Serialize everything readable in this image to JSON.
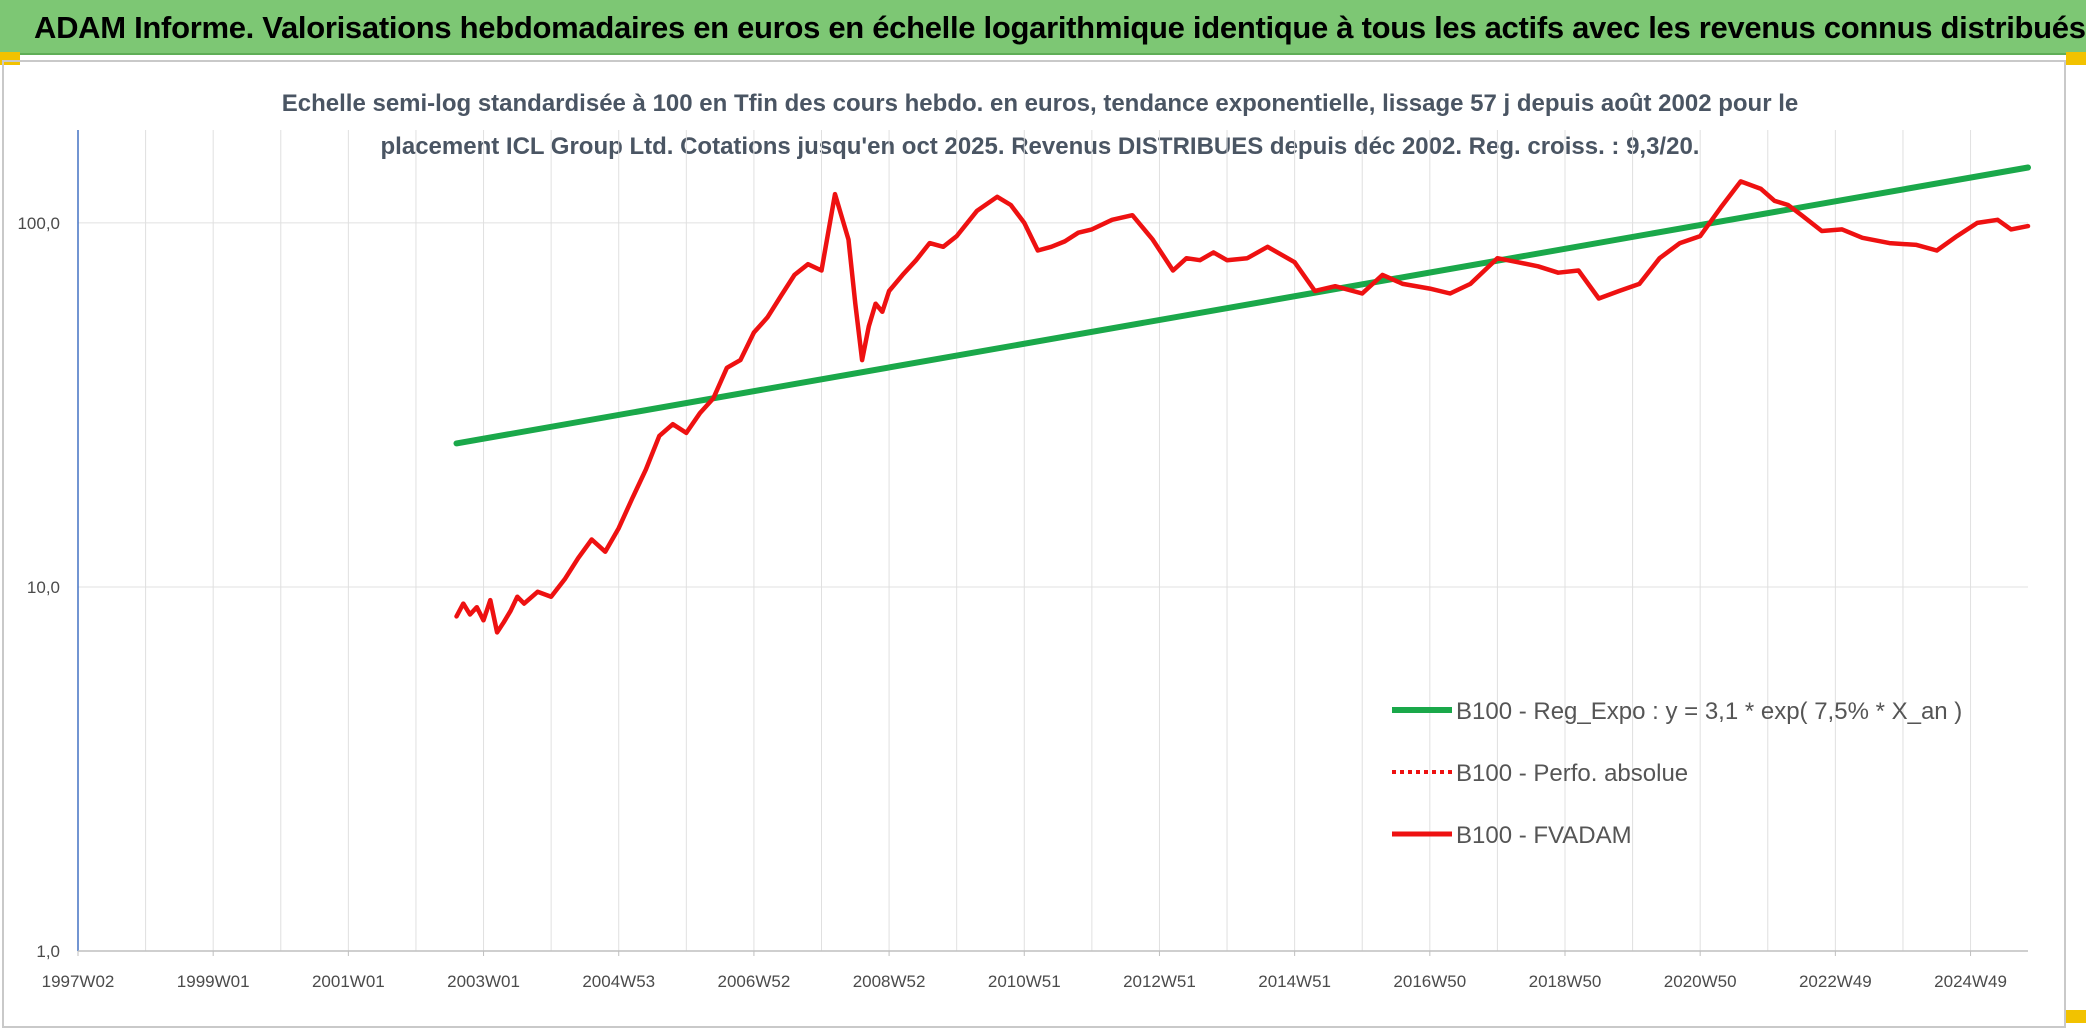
{
  "header": {
    "title": "ADAM Informe. Valorisations hebdomadaires en euros en échelle logarithmique identique à tous les actifs avec les revenus connus distribués"
  },
  "colors": {
    "header_bg": "#7dc774",
    "regression": "#1aa84a",
    "series": "#ee1111",
    "grid": "#e0e0e0",
    "axis": "#4472c4"
  },
  "chart_data": {
    "type": "line",
    "title_line1": "Echelle semi-log standardisée à 100 en Tfin des cours hebdo. en euros, tendance exponentielle, lissage 57 j depuis août 2002 pour le",
    "title_line2": "placement ICL Group Ltd. Cotations jusqu'en oct 2025. Revenus DISTRIBUES depuis déc 2002. Reg. croiss. : 9,3/20.",
    "y_scale": "log",
    "ylim": [
      1,
      180
    ],
    "xlim": [
      1997.0,
      2025.85
    ],
    "y_ticks": [
      {
        "value": 100,
        "label": "100,0"
      },
      {
        "value": 10,
        "label": "10,0"
      },
      {
        "value": 1,
        "label": "1,0"
      }
    ],
    "x_ticks": [
      {
        "value": 1997.0,
        "label": "1997W02"
      },
      {
        "value": 1999.0,
        "label": "1999W01"
      },
      {
        "value": 2001.0,
        "label": "2001W01"
      },
      {
        "value": 2003.0,
        "label": "2003W01"
      },
      {
        "value": 2005.0,
        "label": "2004W53"
      },
      {
        "value": 2007.0,
        "label": "2006W52"
      },
      {
        "value": 2009.0,
        "label": "2008W52"
      },
      {
        "value": 2011.0,
        "label": "2010W51"
      },
      {
        "value": 2013.0,
        "label": "2012W51"
      },
      {
        "value": 2015.0,
        "label": "2014W51"
      },
      {
        "value": 2017.0,
        "label": "2016W50"
      },
      {
        "value": 2019.0,
        "label": "2018W50"
      },
      {
        "value": 2021.0,
        "label": "2020W50"
      },
      {
        "value": 2023.0,
        "label": "2022W49"
      },
      {
        "value": 2025.0,
        "label": "2024W49"
      }
    ],
    "legend": [
      {
        "label": "B100 - Reg_Expo : y = 3,1 * exp( 7,5% *  X_an )",
        "style": "solid-green"
      },
      {
        "label": "B100 - Perfo. absolue",
        "style": "dotted-red"
      },
      {
        "label": "B100 - FVADAM",
        "style": "solid-red"
      }
    ],
    "series": [
      {
        "name": "B100 - Reg_Expo",
        "x": [
          2002.6,
          2025.85
        ],
        "y": [
          24.8,
          142
        ]
      },
      {
        "name": "B100 - FVADAM",
        "x": [
          2002.6,
          2002.7,
          2002.8,
          2002.9,
          2003.0,
          2003.1,
          2003.2,
          2003.3,
          2003.4,
          2003.5,
          2003.6,
          2003.8,
          2004.0,
          2004.2,
          2004.4,
          2004.6,
          2004.8,
          2005.0,
          2005.2,
          2005.4,
          2005.6,
          2005.8,
          2006.0,
          2006.2,
          2006.4,
          2006.6,
          2006.8,
          2007.0,
          2007.2,
          2007.4,
          2007.6,
          2007.8,
          2008.0,
          2008.2,
          2008.4,
          2008.5,
          2008.6,
          2008.7,
          2008.8,
          2008.9,
          2009.0,
          2009.2,
          2009.4,
          2009.6,
          2009.8,
          2010.0,
          2010.3,
          2010.6,
          2010.8,
          2011.0,
          2011.2,
          2011.4,
          2011.6,
          2011.8,
          2012.0,
          2012.3,
          2012.6,
          2012.9,
          2013.2,
          2013.4,
          2013.6,
          2013.8,
          2014.0,
          2014.3,
          2014.6,
          2015.0,
          2015.3,
          2015.6,
          2016.0,
          2016.3,
          2016.6,
          2017.0,
          2017.3,
          2017.6,
          2018.0,
          2018.3,
          2018.6,
          2018.9,
          2019.2,
          2019.5,
          2019.8,
          2020.1,
          2020.4,
          2020.7,
          2021.0,
          2021.3,
          2021.6,
          2021.9,
          2022.1,
          2022.3,
          2022.5,
          2022.8,
          2023.1,
          2023.4,
          2023.8,
          2024.2,
          2024.5,
          2024.8,
          2025.1,
          2025.4,
          2025.6,
          2025.85
        ],
        "y": [
          8.3,
          9.0,
          8.4,
          8.8,
          8.1,
          9.2,
          7.5,
          8.0,
          8.6,
          9.4,
          9.0,
          9.7,
          9.4,
          10.5,
          12.0,
          13.5,
          12.5,
          14.5,
          17.5,
          21,
          26,
          28,
          26.5,
          30,
          33,
          40,
          42,
          50,
          55,
          63,
          72,
          77,
          74,
          120,
          90,
          60,
          42,
          52,
          60,
          57,
          65,
          72,
          79,
          88,
          86,
          92,
          108,
          118,
          112,
          100,
          84,
          86,
          89,
          94,
          96,
          102,
          105,
          90,
          74,
          80,
          79,
          83,
          79,
          80,
          86,
          78,
          65,
          67,
          64,
          72,
          68,
          66,
          64,
          68,
          80,
          78,
          76,
          73,
          74,
          62,
          65,
          68,
          80,
          88,
          92,
          110,
          130,
          124,
          115,
          112,
          105,
          95,
          96,
          91,
          88,
          87,
          84,
          92,
          100,
          102,
          96,
          98
        ]
      }
    ]
  }
}
